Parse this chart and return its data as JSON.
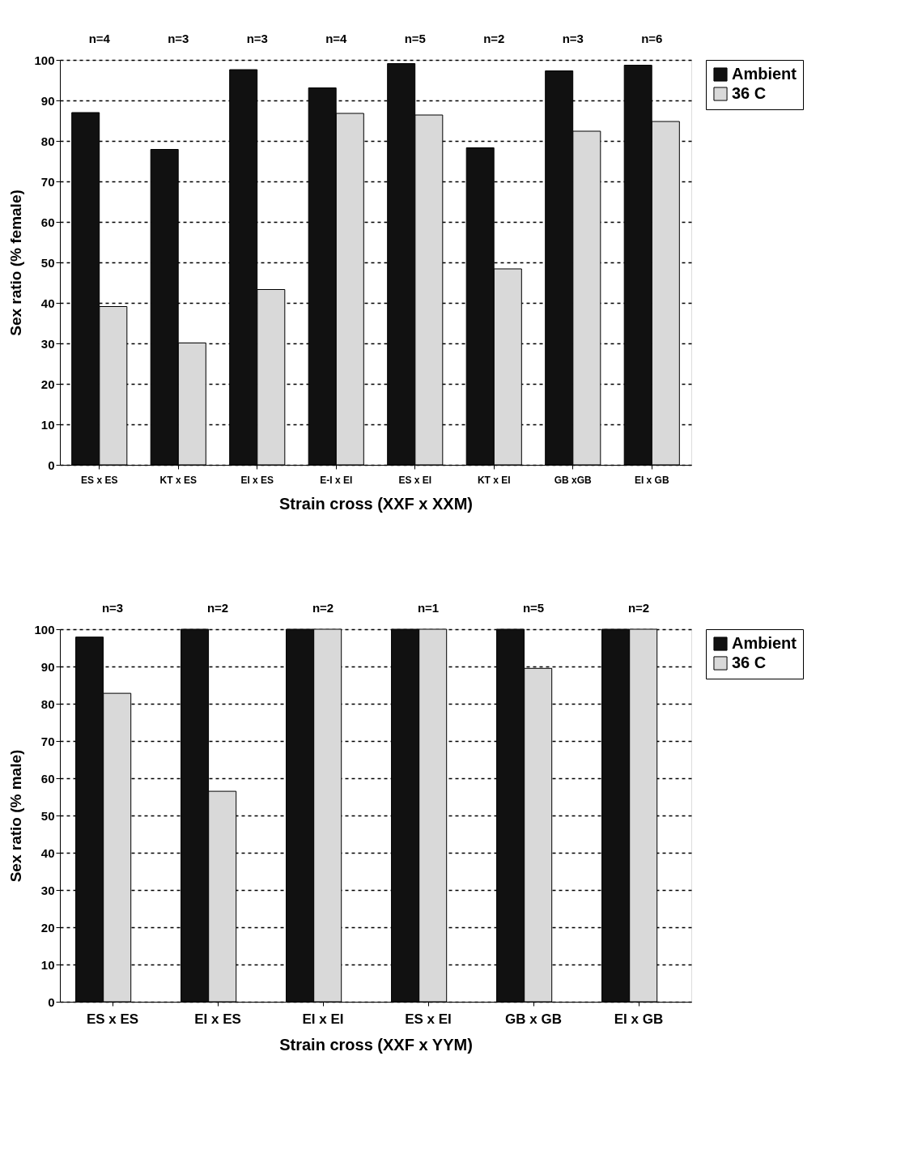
{
  "chart_data": [
    {
      "type": "bar",
      "xlabel": "Strain cross (XXF x XXM)",
      "ylabel": "Sex ratio (% female)",
      "categories": [
        "ES x ES",
        "KT x ES",
        "EI x ES",
        "E-I x EI",
        "ES x EI",
        "KT x EI",
        "GB xGB",
        "EI x GB"
      ],
      "series": [
        {
          "name": "Ambient",
          "color": "#111111",
          "values": [
            87.0,
            77.9,
            97.6,
            93.1,
            99.1,
            78.3,
            97.3,
            98.7
          ]
        },
        {
          "name": "36 C",
          "color": "#d9d9d9",
          "values": [
            39.1,
            30.1,
            43.3,
            86.8,
            86.4,
            48.4,
            82.4,
            84.8
          ]
        }
      ],
      "ylim": [
        0,
        100
      ],
      "yticks": [
        0,
        10,
        20,
        30,
        40,
        50,
        60,
        70,
        80,
        90,
        100
      ],
      "grid": "y",
      "legend": "top right",
      "annotations": [
        "n=4",
        "n=3",
        "n=3",
        "n=4",
        "n=5",
        "n=2",
        "n=3",
        "n=6"
      ]
    },
    {
      "type": "bar",
      "xlabel": "Strain cross (XXF x YYM)",
      "ylabel": "Sex ratio (% male)",
      "categories": [
        "ES x ES",
        "EI x ES",
        "EI x EI",
        "ES x EI",
        "GB x GB",
        "EI x GB"
      ],
      "series": [
        {
          "name": "Ambient",
          "color": "#111111",
          "values": [
            97.9,
            100,
            100,
            100,
            100,
            100
          ]
        },
        {
          "name": "36 C",
          "color": "#d9d9d9",
          "values": [
            82.8,
            56.5,
            100,
            100,
            89.5,
            100
          ]
        }
      ],
      "ylim": [
        0,
        100
      ],
      "yticks": [
        0,
        10,
        20,
        30,
        40,
        50,
        60,
        70,
        80,
        90,
        100
      ],
      "grid": "y",
      "legend": "top right",
      "annotations": [
        "n=3",
        "n=2",
        "n=2",
        "n=1",
        "n=5",
        "n=2"
      ]
    }
  ]
}
